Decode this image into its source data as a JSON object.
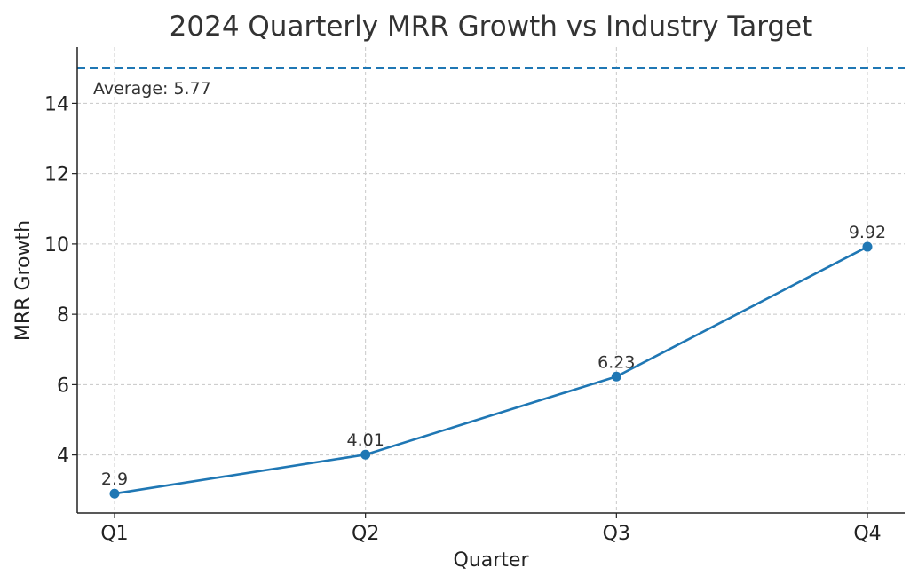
{
  "chart_data": {
    "type": "line",
    "title": "2024 Quarterly MRR Growth vs Industry Target",
    "xlabel": "Quarter",
    "ylabel": "MRR Growth",
    "categories": [
      "Q1",
      "Q2",
      "Q3",
      "Q4"
    ],
    "series": [
      {
        "values": [
          2.9,
          4.01,
          6.23,
          9.92
        ],
        "labels": [
          "2.9",
          "4.01",
          "6.23",
          "9.92"
        ],
        "color": "#1f77b4"
      }
    ],
    "target_line": {
      "value": 15.0,
      "color": "#1f77b4",
      "style": "dashed"
    },
    "annotation": "Average: 5.77",
    "yticks": [
      4,
      6,
      8,
      10,
      12,
      14
    ],
    "ylim": [
      2.35,
      15.6
    ],
    "grid": true,
    "legend": "none"
  }
}
